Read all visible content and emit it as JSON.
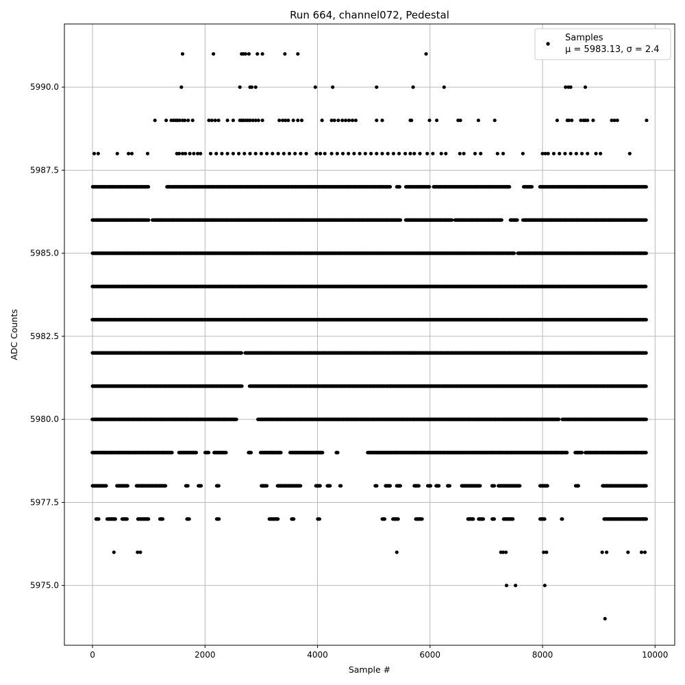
{
  "chart_data": {
    "type": "scatter",
    "title": "Run 664, channel072, Pedestal",
    "xlabel": "Sample #",
    "ylabel": "ADC Counts",
    "xlim": [
      -500,
      10350
    ],
    "ylim": [
      5973.2,
      5991.9
    ],
    "xticks": [
      0,
      2000,
      4000,
      6000,
      8000,
      10000
    ],
    "xtick_labels": [
      "0",
      "2000",
      "4000",
      "6000",
      "8000",
      "10000"
    ],
    "yticks": [
      5975.0,
      5977.5,
      5980.0,
      5982.5,
      5985.0,
      5987.5,
      5990.0
    ],
    "ytick_labels": [
      "5975.0",
      "5977.5",
      "5980.0",
      "5982.5",
      "5985.0",
      "5987.5",
      "5990.0"
    ],
    "grid": true,
    "legend_position": "top-right",
    "series": [
      {
        "name": "Samples",
        "stats_label": "μ = 5983.13, σ = 2.4",
        "color": "#000000",
        "n_samples": 9850,
        "value_levels": [
          5974,
          5975,
          5976,
          5977,
          5978,
          5979,
          5980,
          5981,
          5982,
          5983,
          5984,
          5985,
          5986,
          5987,
          5988,
          5989,
          5990,
          5991
        ],
        "points": [
          {
            "y": 5991,
            "x": [
              1600,
              2150,
              2650,
              2680,
              2720,
              2780,
              2930,
              3020,
              3420,
              3650,
              5930
            ]
          },
          {
            "y": 5990,
            "x": [
              1580,
              2620,
              2800,
              2830,
              2900,
              3960,
              4270,
              5050,
              5700,
              6250,
              8410,
              8460,
              8500,
              8760
            ]
          },
          {
            "y": 5989,
            "x": [
              1110,
              1310,
              1400,
              1440,
              1480,
              1510,
              1550,
              1600,
              1640,
              1700,
              1780,
              2070,
              2120,
              2180,
              2240,
              2400,
              2500,
              2620,
              2650,
              2680,
              2720,
              2760,
              2800,
              2850,
              2900,
              2950,
              3020,
              3320,
              3380,
              3430,
              3480,
              3570,
              3650,
              3720,
              4080,
              4250,
              4300,
              4370,
              4440,
              4500,
              4560,
              4620,
              4680,
              5050,
              5150,
              5650,
              5670,
              5990,
              6120,
              6500,
              6540,
              6860,
              7150,
              8260,
              8440,
              8470,
              8520,
              8680,
              8730,
              8760,
              8800,
              8900,
              9230,
              9280,
              9330,
              9850
            ]
          },
          {
            "y": 5988,
            "x": [
              30,
              100,
              440,
              640,
              700,
              980,
              1500,
              1540,
              1600,
              1650,
              1730,
              1800,
              1870,
              1920,
              2100,
              2200,
              2300,
              2400,
              2500,
              2600,
              2700,
              2800,
              2900,
              3000,
              3100,
              3200,
              3300,
              3400,
              3500,
              3600,
              3700,
              3800,
              3980,
              4050,
              4130,
              4250,
              4350,
              4450,
              4550,
              4650,
              4750,
              4850,
              4950,
              5050,
              5150,
              5250,
              5350,
              5450,
              5560,
              5650,
              5720,
              5820,
              5950,
              6050,
              6200,
              6280,
              6530,
              6600,
              6800,
              6900,
              7200,
              7300,
              7650,
              8000,
              8050,
              8100,
              8200,
              8300,
              8400,
              8500,
              8600,
              8700,
              8800,
              8950,
              9030,
              9550
            ]
          },
          {
            "y": 5976,
            "x": [
              380,
              800,
              850,
              5410,
              7260,
              7300,
              7350,
              8020,
              8070,
              9060,
              9140,
              9520,
              9760,
              9820
            ]
          },
          {
            "y": 5975,
            "x": [
              7360,
              7520,
              8040
            ]
          },
          {
            "y": 5974,
            "x": [
              9110
            ]
          }
        ],
        "dense_rows": [
          {
            "y": 5987,
            "x_start": 0,
            "x_end": 9850,
            "gaps": [
              [
                1010,
                1320
              ],
              [
                5300,
                5400
              ],
              [
                5460,
                5560
              ],
              [
                6000,
                6060
              ],
              [
                7420,
                7660
              ],
              [
                7820,
                7950
              ]
            ]
          },
          {
            "y": 5986,
            "x_start": 0,
            "x_end": 9850,
            "gaps": [
              [
                1000,
                1060
              ],
              [
                5480,
                5560
              ],
              [
                6390,
                6440
              ],
              [
                7280,
                7420
              ],
              [
                7560,
                7650
              ]
            ]
          },
          {
            "y": 5985,
            "x_start": 0,
            "x_end": 9850,
            "gaps": [
              [
                7500,
                7550
              ]
            ]
          },
          {
            "y": 5984,
            "x_start": 0,
            "x_end": 9850,
            "gaps": []
          },
          {
            "y": 5983,
            "x_start": 0,
            "x_end": 9850,
            "gaps": []
          },
          {
            "y": 5982,
            "x_start": 0,
            "x_end": 9850,
            "gaps": [
              [
                2650,
                2710
              ]
            ]
          },
          {
            "y": 5981,
            "x_start": 0,
            "x_end": 9850,
            "gaps": [
              [
                2660,
                2790
              ]
            ]
          },
          {
            "y": 5980,
            "x_start": 0,
            "x_end": 9850,
            "gaps": [
              [
                2560,
                2940
              ],
              [
                8300,
                8350
              ]
            ]
          },
          {
            "y": 5979,
            "x_start": 0,
            "x_end": 9850,
            "gaps": [
              [
                1420,
                1530
              ],
              [
                1850,
                1990
              ],
              [
                2070,
                2160
              ],
              [
                2380,
                2760
              ],
              [
                2830,
                2980
              ],
              [
                3350,
                3510
              ],
              [
                4100,
                4320
              ],
              [
                4370,
                4890
              ],
              [
                8450,
                8570
              ],
              [
                8700,
                8760
              ]
            ]
          },
          {
            "y": 5978,
            "x_start": 0,
            "x_end": 9850,
            "gaps": [
              [
                250,
                430
              ],
              [
                630,
                780
              ],
              [
                1300,
                1650
              ],
              [
                1700,
                1880
              ],
              [
                1930,
                2200
              ],
              [
                2250,
                3000
              ],
              [
                3100,
                3280
              ],
              [
                3700,
                3960
              ],
              [
                4050,
                4170
              ],
              [
                4230,
                4400
              ],
              [
                4420,
                5020
              ],
              [
                5060,
                5200
              ],
              [
                5300,
                5400
              ],
              [
                5480,
                5720
              ],
              [
                5800,
                5960
              ],
              [
                6020,
                6110
              ],
              [
                6160,
                6300
              ],
              [
                6350,
                6560
              ],
              [
                6900,
                7100
              ],
              [
                7150,
                7210
              ],
              [
                7600,
                7950
              ],
              [
                8100,
                8580
              ],
              [
                8650,
                9060
              ]
            ]
          },
          {
            "y": 5977,
            "x_start": 60,
            "x_end": 9850,
            "gaps": [
              [
                120,
                260
              ],
              [
                420,
                520
              ],
              [
                620,
                800
              ],
              [
                1000,
                1190
              ],
              [
                1250,
                1680
              ],
              [
                1730,
                2200
              ],
              [
                2250,
                3140
              ],
              [
                3300,
                3540
              ],
              [
                3580,
                4000
              ],
              [
                4040,
                5150
              ],
              [
                5200,
                5340
              ],
              [
                5440,
                5740
              ],
              [
                5860,
                6660
              ],
              [
                6780,
                6860
              ],
              [
                6950,
                7100
              ],
              [
                7150,
                7300
              ],
              [
                7480,
                7950
              ],
              [
                8050,
                8330
              ],
              [
                8360,
                9090
              ]
            ]
          }
        ]
      }
    ]
  }
}
